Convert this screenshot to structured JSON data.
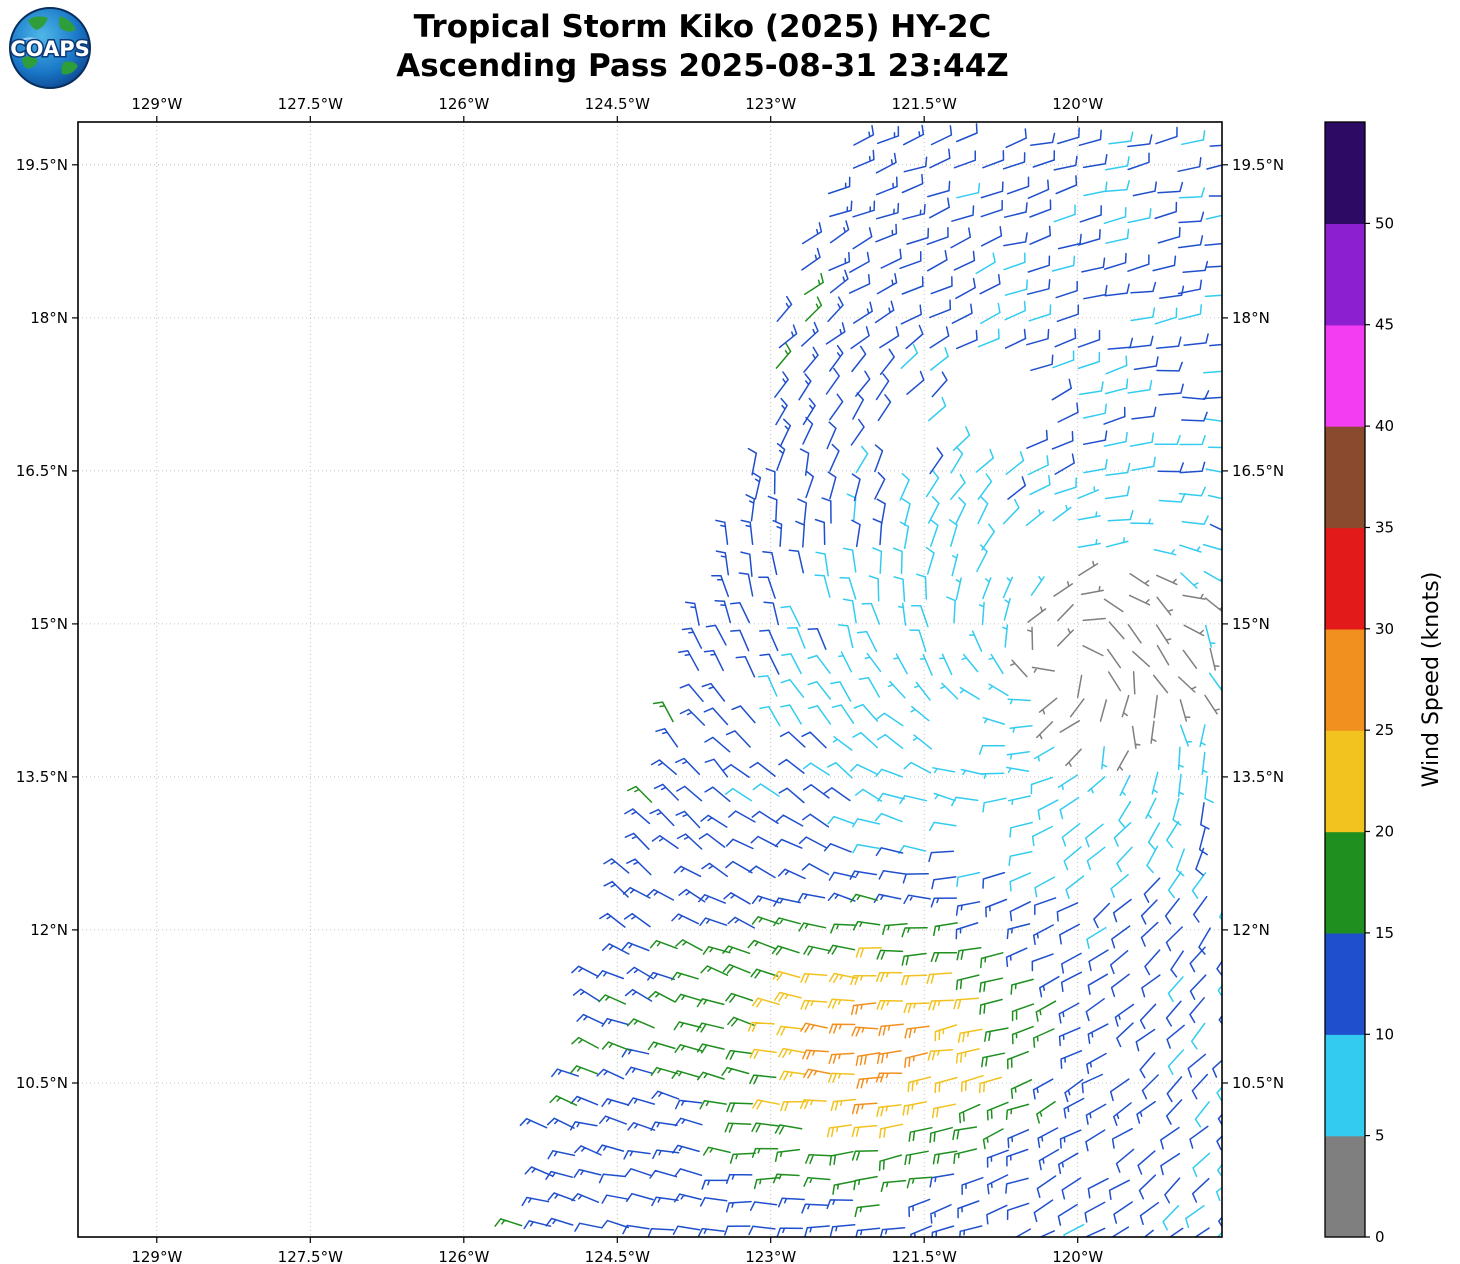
{
  "header": {
    "title_line1": "Tropical Storm Kiko (2025) HY-2C",
    "title_line2": "Ascending Pass 2025-08-31 23:44Z",
    "logo_text": "COAPS"
  },
  "chart_data": {
    "type": "wind_barb_map",
    "title": "Tropical Storm Kiko (2025) HY-2C",
    "subtitle": "Ascending Pass 2025-08-31 23:44Z",
    "units": "knots",
    "lon_range": [
      -129.77,
      -118.59
    ],
    "lat_range": [
      8.99,
      19.92
    ],
    "grid": true,
    "x_ticks": [
      {
        "value": -129.0,
        "label": "129°W"
      },
      {
        "value": -127.5,
        "label": "127.5°W"
      },
      {
        "value": -126.0,
        "label": "126°W"
      },
      {
        "value": -124.5,
        "label": "124.5°W"
      },
      {
        "value": -123.0,
        "label": "123°W"
      },
      {
        "value": -121.5,
        "label": "121.5°W"
      },
      {
        "value": -120.0,
        "label": "120°W"
      }
    ],
    "y_ticks": [
      {
        "value": 19.5,
        "label": "19.5°N"
      },
      {
        "value": 18.0,
        "label": "18°N"
      },
      {
        "value": 16.5,
        "label": "16.5°N"
      },
      {
        "value": 15.0,
        "label": "15°N"
      },
      {
        "value": 13.5,
        "label": "13.5°N"
      },
      {
        "value": 12.0,
        "label": "12°N"
      },
      {
        "value": 10.5,
        "label": "10.5°N"
      }
    ],
    "colorbar": {
      "label": "Wind Speed (knots)",
      "tick_values": [
        0,
        5,
        10,
        15,
        20,
        25,
        30,
        35,
        40,
        45,
        50
      ],
      "segment_colors_bottom_to_top": [
        "#7f7f7f",
        "#33ccf0",
        "#1f4fcc",
        "#1f8f1f",
        "#f2c21f",
        "#f2901f",
        "#e31a1a",
        "#8a4a2e",
        "#f23df2",
        "#8c1fd0",
        "#2d0a63"
      ],
      "top_segment_meaning": "greater than 50 knots"
    },
    "swath": {
      "left_edge_lon_at_lat9": -125.45,
      "left_edge_slope_lon_per_lat": 0.29,
      "right_edge": "beyond plot right edge"
    },
    "wind_field_model": {
      "rotation": "cyclonic_counterclockwise",
      "circulation_center": {
        "lat": 14.6,
        "lon": -120.2
      },
      "inflow_fraction": 0.5,
      "background_speed_kt": 10.5,
      "calm_core": {
        "lat": 14.7,
        "lon": -119.6,
        "radius_deg": 1.1
      },
      "southern_wind_max": {
        "lat": 10.9,
        "lon": -121.9,
        "peak_added_kt": 17,
        "radius_deg": 1.35
      },
      "west_streak": {
        "lat": 15.0,
        "lon": -124.25,
        "peak_added_kt": 8.5,
        "width_deg": 0.38
      },
      "cyan_lull": {
        "lat": 14.0,
        "lon": -121.3,
        "reduction_kt": 3.0
      },
      "left_edge_enhancement_kt": 3.5,
      "trade_easterly_blend_north_of_lat": 16.0
    },
    "barb_grid_spacing_deg": 0.247,
    "missing_data_holes": [
      {
        "lat": 17.15,
        "lon": -120.85,
        "r": 0.5
      },
      {
        "lat": 15.6,
        "lon": -120.45,
        "r": 0.33
      },
      {
        "lat": 16.75,
        "lon": -121.7,
        "r": 0.3
      },
      {
        "lat": 12.95,
        "lon": -120.85,
        "r": 0.27
      },
      {
        "lat": 13.9,
        "lon": -121.05,
        "r": 0.22
      }
    ]
  }
}
